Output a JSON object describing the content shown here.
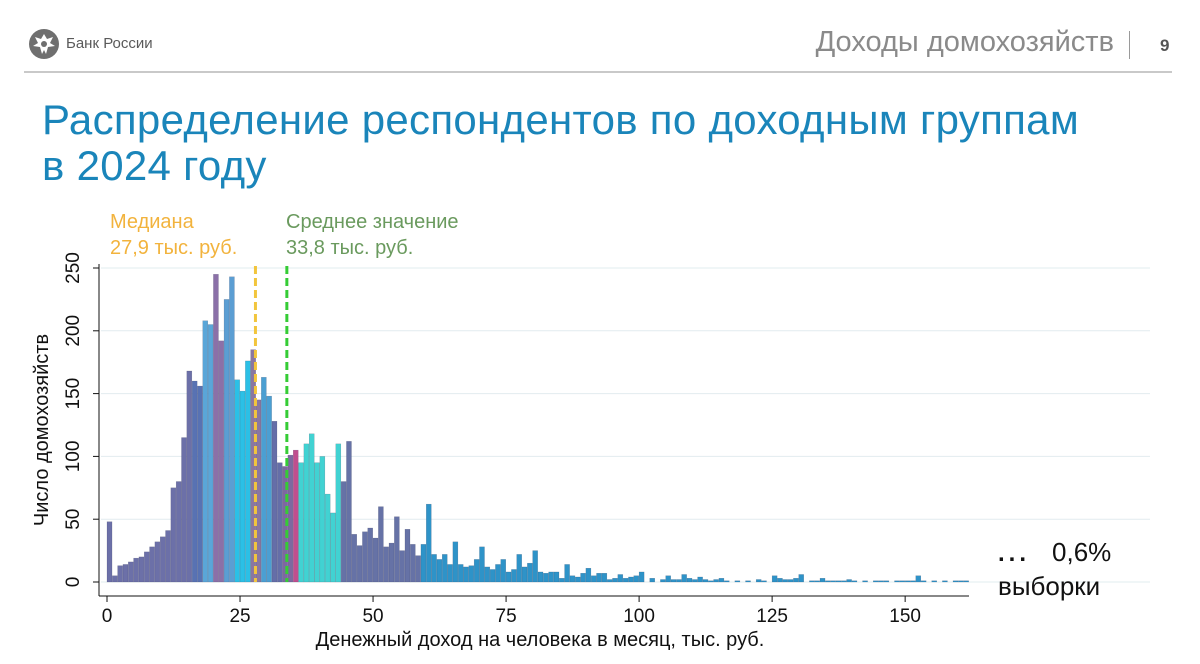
{
  "header": {
    "bank_name": "Банк России",
    "section_title": "Доходы домохозяйств",
    "page_number": "9",
    "logo_icon": "eagle-emblem-icon"
  },
  "title": {
    "line1": "Распределение респондентов по доходным группам",
    "line2": "в 2024 году"
  },
  "annotations": {
    "median_label": "Медиана",
    "median_value": "27,9 тыс. руб.",
    "mean_label": "Среднее значение",
    "mean_value": "33,8 тыс. руб.",
    "side_dots": "...",
    "side_percent": "0,6%",
    "side_text": "выборки"
  },
  "colors": {
    "title": "#1a85ba",
    "median": "#f2c53d",
    "mean": "#35cc35",
    "median_text": "#f2b33d",
    "mean_text": "#6a9a5e"
  },
  "chart_data": {
    "type": "bar",
    "title": "",
    "xlabel": "Денежный доход на человека в месяц, тыс. руб.",
    "ylabel": "Число домохозяйств",
    "xlim": [
      0,
      162
    ],
    "ylim": [
      0,
      250
    ],
    "xticks": [
      0,
      25,
      50,
      75,
      100,
      125,
      150
    ],
    "yticks": [
      0,
      50,
      100,
      150,
      200,
      250
    ],
    "grid": true,
    "bin_width": 1,
    "x_start": 0,
    "median": 27.9,
    "mean": 33.8,
    "values": [
      48,
      5,
      13,
      14,
      16,
      19,
      20,
      24,
      28,
      32,
      36,
      41,
      75,
      80,
      115,
      168,
      160,
      156,
      208,
      205,
      245,
      192,
      225,
      243,
      161,
      152,
      176,
      185,
      145,
      163,
      148,
      128,
      95,
      92,
      101,
      105,
      95,
      110,
      118,
      95,
      100,
      70,
      55,
      110,
      80,
      112,
      38,
      29,
      40,
      43,
      35,
      60,
      28,
      31,
      52,
      25,
      42,
      30,
      21,
      30,
      62,
      22,
      18,
      22,
      14,
      32,
      14,
      12,
      13,
      18,
      28,
      12,
      10,
      14,
      18,
      8,
      10,
      22,
      12,
      15,
      25,
      8,
      7,
      8,
      8,
      3,
      14,
      5,
      4,
      7,
      11,
      5,
      7,
      7,
      2,
      3,
      6,
      3,
      4,
      5,
      8,
      0,
      3,
      0,
      2,
      5,
      2,
      2,
      6,
      3,
      2,
      4,
      2,
      1,
      2,
      3,
      1,
      0,
      1,
      0,
      1,
      0,
      2,
      1,
      0,
      5,
      3,
      2,
      2,
      3,
      6,
      0,
      1,
      1,
      3,
      1,
      1,
      1,
      1,
      2,
      1,
      0,
      1,
      0,
      1,
      1,
      1,
      0,
      1,
      1,
      1,
      1,
      5,
      1,
      0,
      1,
      0,
      1,
      0,
      1,
      1,
      1
    ]
  }
}
